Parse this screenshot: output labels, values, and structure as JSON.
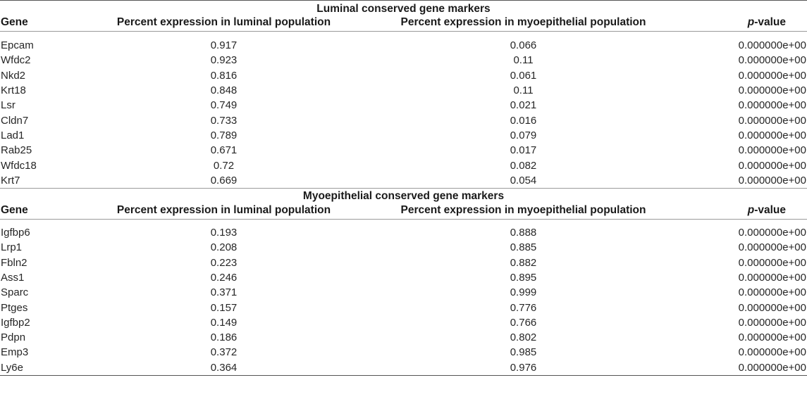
{
  "columns": {
    "gene": "Gene",
    "luminal": "Percent expression in luminal population",
    "myoepithelial": "Percent expression in myoepithelial population",
    "pvalue_italic": "p",
    "pvalue_rest": "-value"
  },
  "sections": [
    {
      "title": "Luminal conserved gene markers",
      "rows": [
        {
          "gene": "Epcam",
          "luminal": "0.917",
          "myoepithelial": "0.066",
          "pvalue": "0.000000e+00"
        },
        {
          "gene": "Wfdc2",
          "luminal": "0.923",
          "myoepithelial": "0.11",
          "pvalue": "0.000000e+00"
        },
        {
          "gene": "Nkd2",
          "luminal": "0.816",
          "myoepithelial": "0.061",
          "pvalue": "0.000000e+00"
        },
        {
          "gene": "Krt18",
          "luminal": "0.848",
          "myoepithelial": "0.11",
          "pvalue": "0.000000e+00"
        },
        {
          "gene": "Lsr",
          "luminal": "0.749",
          "myoepithelial": "0.021",
          "pvalue": "0.000000e+00"
        },
        {
          "gene": "Cldn7",
          "luminal": "0.733",
          "myoepithelial": "0.016",
          "pvalue": "0.000000e+00"
        },
        {
          "gene": "Lad1",
          "luminal": "0.789",
          "myoepithelial": "0.079",
          "pvalue": "0.000000e+00"
        },
        {
          "gene": "Rab25",
          "luminal": "0.671",
          "myoepithelial": "0.017",
          "pvalue": "0.000000e+00"
        },
        {
          "gene": "Wfdc18",
          "luminal": "0.72",
          "myoepithelial": "0.082",
          "pvalue": "0.000000e+00"
        },
        {
          "gene": "Krt7",
          "luminal": "0.669",
          "myoepithelial": "0.054",
          "pvalue": "0.000000e+00"
        }
      ]
    },
    {
      "title": "Myoepithelial conserved gene markers",
      "rows": [
        {
          "gene": "Igfbp6",
          "luminal": "0.193",
          "myoepithelial": "0.888",
          "pvalue": "0.000000e+00"
        },
        {
          "gene": "Lrp1",
          "luminal": "0.208",
          "myoepithelial": "0.885",
          "pvalue": "0.000000e+00"
        },
        {
          "gene": "Fbln2",
          "luminal": "0.223",
          "myoepithelial": "0.882",
          "pvalue": "0.000000e+00"
        },
        {
          "gene": "Ass1",
          "luminal": "0.246",
          "myoepithelial": "0.895",
          "pvalue": "0.000000e+00"
        },
        {
          "gene": "Sparc",
          "luminal": "0.371",
          "myoepithelial": "0.999",
          "pvalue": "0.000000e+00"
        },
        {
          "gene": "Ptges",
          "luminal": "0.157",
          "myoepithelial": "0.776",
          "pvalue": "0.000000e+00"
        },
        {
          "gene": "Igfbp2",
          "luminal": "0.149",
          "myoepithelial": "0.766",
          "pvalue": "0.000000e+00"
        },
        {
          "gene": "Pdpn",
          "luminal": "0.186",
          "myoepithelial": "0.802",
          "pvalue": "0.000000e+00"
        },
        {
          "gene": "Emp3",
          "luminal": "0.372",
          "myoepithelial": "0.985",
          "pvalue": "0.000000e+00"
        },
        {
          "gene": "Ly6e",
          "luminal": "0.364",
          "myoepithelial": "0.976",
          "pvalue": "0.000000e+00"
        }
      ]
    }
  ]
}
